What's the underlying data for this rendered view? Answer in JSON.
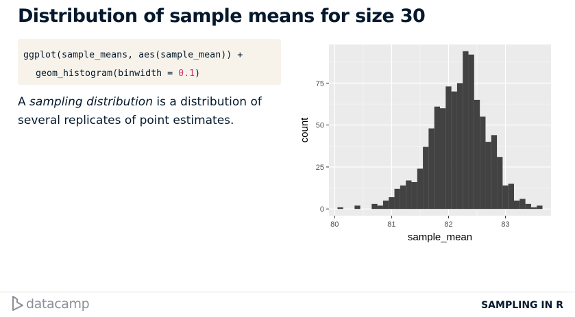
{
  "slide": {
    "title": "Distribution of sample means for size 30",
    "paragraph": {
      "prefix": "A ",
      "emphasis": "sampling distribution",
      "suffix": " is a distribution of several replicates of point estimates."
    }
  },
  "code": {
    "line1": "ggplot(sample_means, aes(sample_mean)) +",
    "line2_prefix": "geom_histogram(binwidth = ",
    "line2_number": "0.1",
    "line2_suffix": ")"
  },
  "footer": {
    "brand": "datacamp",
    "course": "SAMPLING IN R",
    "logo_icon": "datacamp-logo-icon"
  },
  "chart_data": {
    "type": "bar",
    "xlabel": "sample_mean",
    "ylabel": "count",
    "binwidth": 0.1,
    "xlim": [
      79.9,
      83.8
    ],
    "ylim": [
      -4,
      98
    ],
    "x_ticks": [
      80,
      81,
      82,
      83
    ],
    "y_ticks": [
      0,
      25,
      50,
      75
    ],
    "grid": true,
    "panel_color": "#ebebeb",
    "bar_color": "#424242",
    "bins": [
      {
        "x": 80.1,
        "count": 1
      },
      {
        "x": 80.2,
        "count": 0
      },
      {
        "x": 80.3,
        "count": 0
      },
      {
        "x": 80.4,
        "count": 2
      },
      {
        "x": 80.5,
        "count": 0
      },
      {
        "x": 80.6,
        "count": 0
      },
      {
        "x": 80.7,
        "count": 3
      },
      {
        "x": 80.8,
        "count": 2
      },
      {
        "x": 80.9,
        "count": 5
      },
      {
        "x": 81.0,
        "count": 7
      },
      {
        "x": 81.1,
        "count": 12
      },
      {
        "x": 81.2,
        "count": 14
      },
      {
        "x": 81.3,
        "count": 17
      },
      {
        "x": 81.4,
        "count": 16
      },
      {
        "x": 81.5,
        "count": 24
      },
      {
        "x": 81.6,
        "count": 37
      },
      {
        "x": 81.7,
        "count": 48
      },
      {
        "x": 81.8,
        "count": 61
      },
      {
        "x": 81.9,
        "count": 60
      },
      {
        "x": 82.0,
        "count": 73
      },
      {
        "x": 82.1,
        "count": 70
      },
      {
        "x": 82.2,
        "count": 75
      },
      {
        "x": 82.3,
        "count": 94
      },
      {
        "x": 82.4,
        "count": 92
      },
      {
        "x": 82.5,
        "count": 65
      },
      {
        "x": 82.6,
        "count": 55
      },
      {
        "x": 82.7,
        "count": 40
      },
      {
        "x": 82.8,
        "count": 44
      },
      {
        "x": 82.9,
        "count": 31
      },
      {
        "x": 83.0,
        "count": 14
      },
      {
        "x": 83.1,
        "count": 15
      },
      {
        "x": 83.2,
        "count": 5
      },
      {
        "x": 83.3,
        "count": 6
      },
      {
        "x": 83.4,
        "count": 3
      },
      {
        "x": 83.5,
        "count": 1
      },
      {
        "x": 83.6,
        "count": 2
      }
    ]
  }
}
